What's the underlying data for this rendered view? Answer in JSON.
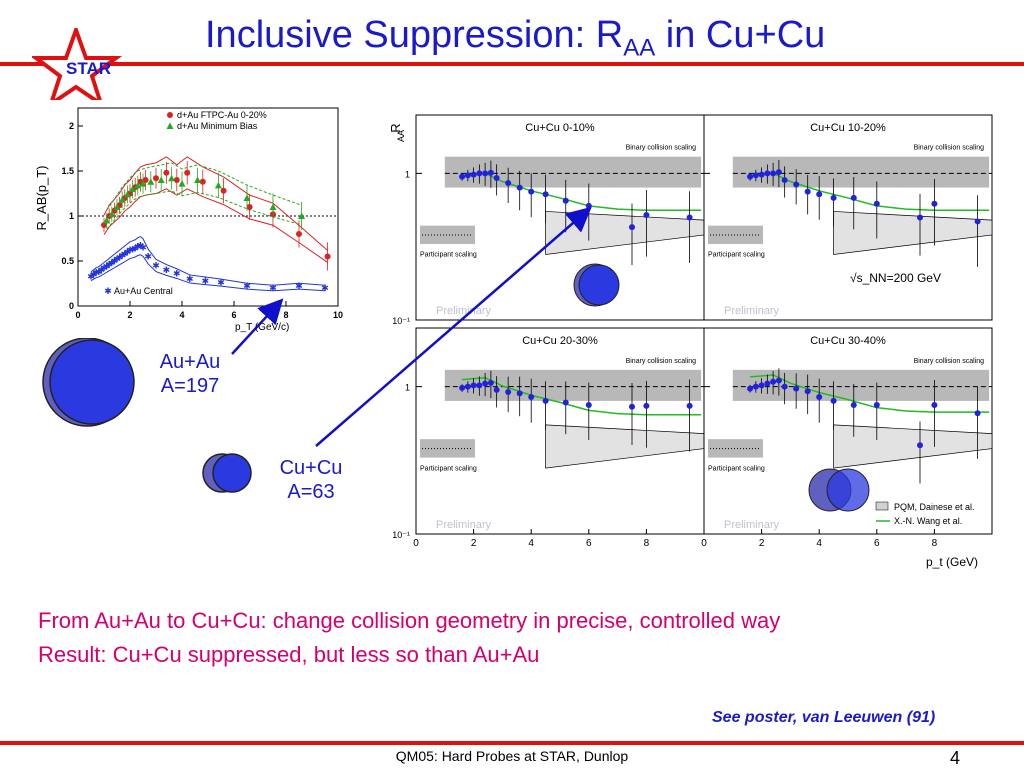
{
  "slide": {
    "title_main": "Inclusive Suppression: R",
    "title_sub": "AA",
    "title_end": " in Cu+Cu",
    "logo_text": "STAR",
    "au_label": "Au+Au",
    "au_a": "A=197",
    "cu_label": "Cu+Cu",
    "cu_a": "A=63",
    "conclusion_1": "From Au+Au to Cu+Cu: change collision geometry in precise, controlled way",
    "conclusion_2": "Result: Cu+Cu suppressed, but less so than Au+Au",
    "poster_note": "See poster, van Leeuwen (91)",
    "footer": "QM05: Hard Probes at STAR, Dunlop",
    "page_number": "4",
    "colors": {
      "title": "#1a1acc",
      "rule": "#e01010",
      "conclusion": "#d4006e",
      "arrow": "#1010cc"
    }
  },
  "chart_data": [
    {
      "type": "scatter",
      "ylabel": "R_AB(p_T)",
      "xlabel": "p_T (GeV/c)",
      "xlim": [
        0,
        10
      ],
      "ylim": [
        0,
        2.2
      ],
      "xticks": [
        "0",
        "2",
        "4",
        "6",
        "8",
        "10"
      ],
      "yticks": [
        "0",
        "0.5",
        "1",
        "1.5",
        "2"
      ],
      "series": [
        {
          "name": "d+Au FTPC-Au 0-20%",
          "color": "#dd2222",
          "marker": "circle",
          "x": [
            1.0,
            1.2,
            1.4,
            1.6,
            1.8,
            2.0,
            2.2,
            2.4,
            2.6,
            3.0,
            3.4,
            3.8,
            4.2,
            4.8,
            5.6,
            6.6,
            7.5,
            8.5,
            9.6
          ],
          "y": [
            0.9,
            1.0,
            1.06,
            1.12,
            1.2,
            1.25,
            1.32,
            1.38,
            1.4,
            1.42,
            1.48,
            1.4,
            1.48,
            1.38,
            1.28,
            1.1,
            1.02,
            0.8,
            0.55
          ]
        },
        {
          "name": "d+Au Minimum Bias",
          "color": "#22aa22",
          "marker": "triangle",
          "x": [
            1.1,
            1.3,
            1.5,
            1.7,
            1.9,
            2.1,
            2.3,
            2.5,
            2.8,
            3.2,
            3.6,
            4.0,
            4.6,
            5.4,
            6.5,
            7.5,
            8.6
          ],
          "y": [
            0.95,
            1.02,
            1.1,
            1.18,
            1.24,
            1.3,
            1.34,
            1.36,
            1.38,
            1.4,
            1.42,
            1.36,
            1.4,
            1.34,
            1.2,
            1.1,
            1.0
          ]
        },
        {
          "name": "Au+Au Central",
          "color": "#2233dd",
          "marker": "star",
          "x": [
            0.5,
            0.6,
            0.7,
            0.8,
            0.9,
            1.0,
            1.1,
            1.2,
            1.3,
            1.4,
            1.5,
            1.6,
            1.7,
            1.8,
            1.9,
            2.0,
            2.1,
            2.2,
            2.3,
            2.4,
            2.5,
            2.7,
            3.0,
            3.4,
            3.8,
            4.3,
            4.9,
            5.5,
            6.5,
            7.5,
            8.5,
            9.5
          ],
          "y": [
            0.33,
            0.35,
            0.37,
            0.38,
            0.4,
            0.42,
            0.44,
            0.46,
            0.48,
            0.5,
            0.52,
            0.54,
            0.56,
            0.58,
            0.6,
            0.62,
            0.63,
            0.64,
            0.66,
            0.67,
            0.65,
            0.55,
            0.45,
            0.4,
            0.36,
            0.3,
            0.28,
            0.26,
            0.22,
            0.2,
            0.22,
            0.2
          ]
        }
      ]
    },
    {
      "type": "scatter",
      "ylabel": "R_AA",
      "xlabel": "p_t (GeV)",
      "log_y": true,
      "xlim": [
        0,
        10
      ],
      "ylim": [
        0.1,
        2.5
      ],
      "xticks": [
        "0",
        "2",
        "4",
        "6",
        "8"
      ],
      "yticks": [
        "10^-1",
        "1"
      ],
      "energy_label": "√s_NN=200 GeV",
      "preliminary": "Preliminary",
      "binary_label": "Binary collision scaling",
      "participant_label": "Participant scaling",
      "legend": [
        "PQM, Dainese et al.",
        "X.-N. Wang et al."
      ],
      "panels": [
        {
          "name": "Cu+Cu 0-10%",
          "x": [
            1.6,
            1.8,
            2.0,
            2.2,
            2.4,
            2.6,
            2.8,
            3.2,
            3.6,
            4.0,
            4.5,
            5.2,
            6.0,
            7.5,
            8.0,
            9.5
          ],
          "y": [
            0.95,
            0.97,
            0.98,
            1.0,
            1.0,
            1.01,
            0.93,
            0.86,
            0.8,
            0.75,
            0.72,
            0.65,
            0.6,
            0.43,
            0.52,
            0.5
          ]
        },
        {
          "name": "Cu+Cu 10-20%",
          "x": [
            1.6,
            1.8,
            2.0,
            2.2,
            2.4,
            2.6,
            2.8,
            3.2,
            3.6,
            4.0,
            4.5,
            5.2,
            6.0,
            7.5,
            8.0,
            9.5
          ],
          "y": [
            0.95,
            0.97,
            0.98,
            1.0,
            1.0,
            1.02,
            0.9,
            0.84,
            0.75,
            0.72,
            0.68,
            0.68,
            0.62,
            0.5,
            0.62,
            0.47
          ]
        },
        {
          "name": "Cu+Cu 20-30%",
          "x": [
            1.6,
            1.8,
            2.0,
            2.2,
            2.4,
            2.6,
            2.8,
            3.2,
            3.6,
            4.0,
            4.5,
            5.2,
            6.0,
            7.5,
            8.0,
            9.5
          ],
          "y": [
            0.98,
            1.0,
            1.02,
            1.02,
            1.05,
            1.06,
            0.95,
            0.92,
            0.9,
            0.85,
            0.8,
            0.78,
            0.75,
            0.73,
            0.74,
            0.74
          ]
        },
        {
          "name": "Cu+Cu 30-40%",
          "x": [
            1.6,
            1.8,
            2.0,
            2.2,
            2.4,
            2.6,
            2.8,
            3.2,
            3.6,
            4.0,
            4.5,
            5.2,
            6.0,
            7.5,
            8.0,
            9.5
          ],
          "y": [
            0.97,
            1.0,
            1.02,
            1.05,
            1.08,
            1.1,
            1.0,
            0.97,
            0.93,
            0.85,
            0.8,
            0.75,
            0.75,
            0.4,
            0.75,
            0.66
          ]
        }
      ]
    }
  ]
}
